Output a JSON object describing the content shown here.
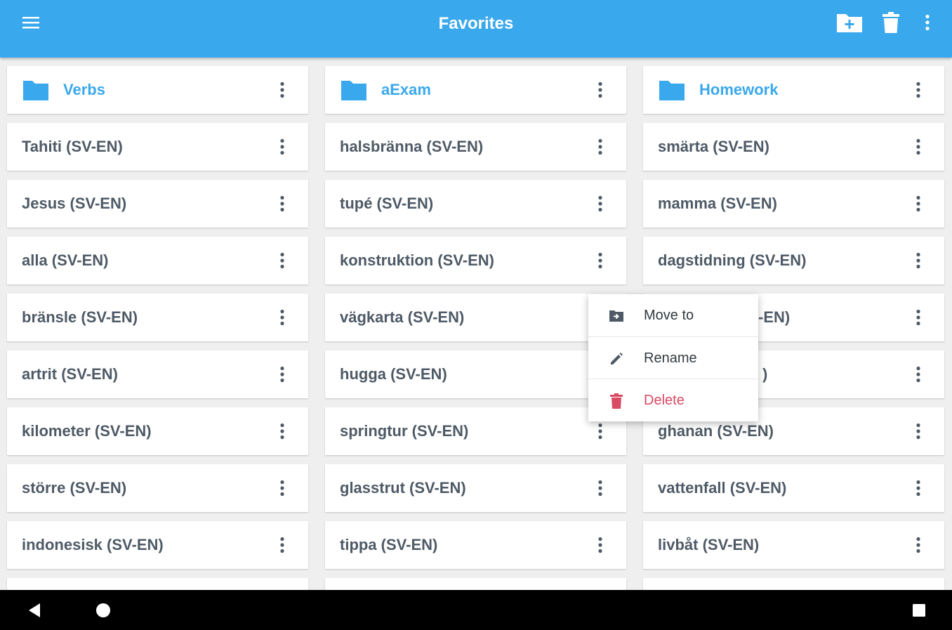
{
  "appbar": {
    "title": "Favorites",
    "menu_icon": "hamburger-menu-icon",
    "actions": [
      "new-folder-icon",
      "trash-icon",
      "overflow-menu-icon"
    ]
  },
  "grid": {
    "columns": [
      {
        "items": [
          {
            "label": "Verbs",
            "type": "folder"
          },
          {
            "label": "Tahiti (SV-EN)",
            "type": "entry"
          },
          {
            "label": "Jesus (SV-EN)",
            "type": "entry"
          },
          {
            "label": "alla (SV-EN)",
            "type": "entry"
          },
          {
            "label": "bränsle (SV-EN)",
            "type": "entry"
          },
          {
            "label": "artrit (SV-EN)",
            "type": "entry"
          },
          {
            "label": "kilometer (SV-EN)",
            "type": "entry"
          },
          {
            "label": "större (SV-EN)",
            "type": "entry"
          },
          {
            "label": "indonesisk (SV-EN)",
            "type": "entry"
          }
        ]
      },
      {
        "items": [
          {
            "label": "aExam",
            "type": "folder"
          },
          {
            "label": "halsbränna (SV-EN)",
            "type": "entry"
          },
          {
            "label": "tupé (SV-EN)",
            "type": "entry"
          },
          {
            "label": "konstruktion (SV-EN)",
            "type": "entry"
          },
          {
            "label": "vägkarta (SV-EN)",
            "type": "entry"
          },
          {
            "label": "hugga (SV-EN)",
            "type": "entry"
          },
          {
            "label": "springtur (SV-EN)",
            "type": "entry"
          },
          {
            "label": "glasstrut (SV-EN)",
            "type": "entry"
          },
          {
            "label": "tippa (SV-EN)",
            "type": "entry"
          }
        ]
      },
      {
        "items": [
          {
            "label": "Homework",
            "type": "folder"
          },
          {
            "label": "smärta (SV-EN)",
            "type": "entry"
          },
          {
            "label": "mamma (SV-EN)",
            "type": "entry"
          },
          {
            "label": "dagstidning (SV-EN)",
            "type": "entry"
          },
          {
            "label": "-EN)",
            "type": "entry"
          },
          {
            "label": ")",
            "type": "entry"
          },
          {
            "label": "ghanan (SV-EN)",
            "type": "entry"
          },
          {
            "label": "vattenfall (SV-EN)",
            "type": "entry"
          },
          {
            "label": "livbåt (SV-EN)",
            "type": "entry"
          }
        ]
      }
    ]
  },
  "context_menu": {
    "items": [
      {
        "label": "Move to",
        "icon": "move-to-folder-icon"
      },
      {
        "label": "Rename",
        "icon": "pencil-icon"
      },
      {
        "label": "Delete",
        "icon": "trash-icon"
      }
    ]
  },
  "navbar": {
    "buttons": [
      "back-icon",
      "home-icon",
      "recents-icon"
    ]
  },
  "colors": {
    "accent": "#3aa8ec",
    "text": "#4e5a66",
    "delete": "#d94a63",
    "background": "#efefef"
  }
}
